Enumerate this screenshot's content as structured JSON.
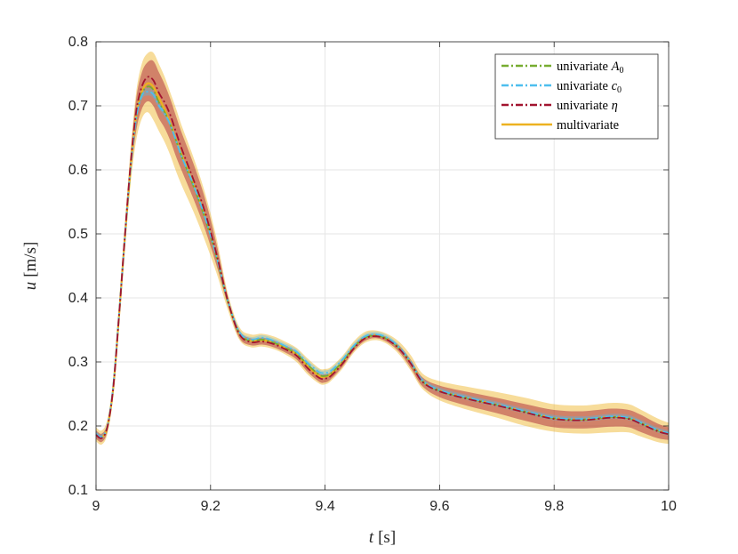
{
  "chart_data": {
    "type": "line",
    "xlabel": {
      "var": "t",
      "unit": "[s]"
    },
    "ylabel": {
      "var": "u",
      "unit": "[m/s]"
    },
    "xlim": [
      9,
      10
    ],
    "ylim": [
      0.1,
      0.8
    ],
    "xticks": [
      9,
      9.2,
      9.4,
      9.6,
      9.8,
      10
    ],
    "yticks": [
      0.1,
      0.2,
      0.3,
      0.4,
      0.5,
      0.6,
      0.7,
      0.8
    ],
    "xtick_labels": [
      "9",
      "9.2",
      "9.4",
      "9.6",
      "9.8",
      "10"
    ],
    "ytick_labels": [
      "0.1",
      "0.2",
      "0.3",
      "0.4",
      "0.5",
      "0.6",
      "0.7",
      "0.8"
    ],
    "grid": true,
    "legend_position": "top-right",
    "x": [
      9.0,
      9.01,
      9.02,
      9.03,
      9.04,
      9.05,
      9.06,
      9.07,
      9.08,
      9.09,
      9.1,
      9.11,
      9.12,
      9.13,
      9.14,
      9.15,
      9.17,
      9.19,
      9.21,
      9.23,
      9.25,
      9.27,
      9.29,
      9.31,
      9.33,
      9.35,
      9.37,
      9.39,
      9.4,
      9.41,
      9.43,
      9.45,
      9.47,
      9.49,
      9.51,
      9.53,
      9.55,
      9.57,
      9.6,
      9.65,
      9.7,
      9.75,
      9.8,
      9.85,
      9.9,
      9.93,
      9.95,
      9.98,
      10.0
    ],
    "series": [
      {
        "name": "univariate A0",
        "legend_main": "univariate ",
        "legend_sym": "A",
        "legend_sub": "0",
        "color": "#77AC30",
        "dash": "dashdot",
        "values": [
          0.187,
          0.182,
          0.2,
          0.26,
          0.37,
          0.49,
          0.6,
          0.68,
          0.718,
          0.73,
          0.725,
          0.705,
          0.69,
          0.67,
          0.645,
          0.62,
          0.575,
          0.525,
          0.465,
          0.395,
          0.345,
          0.333,
          0.335,
          0.33,
          0.322,
          0.313,
          0.295,
          0.28,
          0.278,
          0.282,
          0.3,
          0.323,
          0.338,
          0.341,
          0.335,
          0.321,
          0.298,
          0.27,
          0.255,
          0.243,
          0.233,
          0.222,
          0.212,
          0.21,
          0.214,
          0.212,
          0.205,
          0.193,
          0.188
        ]
      },
      {
        "name": "univariate c0",
        "legend_main": "univariate ",
        "legend_sym": "c",
        "legend_sub": "0",
        "color": "#4DBEEE",
        "dash": "dashdot",
        "values": [
          0.188,
          0.183,
          0.2,
          0.262,
          0.372,
          0.49,
          0.6,
          0.68,
          0.716,
          0.722,
          0.718,
          0.7,
          0.688,
          0.67,
          0.645,
          0.62,
          0.577,
          0.527,
          0.466,
          0.396,
          0.347,
          0.335,
          0.338,
          0.333,
          0.325,
          0.316,
          0.298,
          0.284,
          0.283,
          0.286,
          0.303,
          0.325,
          0.34,
          0.343,
          0.337,
          0.322,
          0.299,
          0.271,
          0.256,
          0.244,
          0.234,
          0.223,
          0.213,
          0.211,
          0.215,
          0.213,
          0.206,
          0.194,
          0.189
        ]
      },
      {
        "name": "univariate η",
        "legend_main": "univariate ",
        "legend_sym": "η",
        "legend_sub": "",
        "color": "#A2142F",
        "dash": "dashdot",
        "values": [
          0.186,
          0.181,
          0.199,
          0.259,
          0.37,
          0.492,
          0.605,
          0.69,
          0.73,
          0.745,
          0.74,
          0.72,
          0.705,
          0.685,
          0.658,
          0.632,
          0.585,
          0.535,
          0.47,
          0.396,
          0.344,
          0.331,
          0.332,
          0.328,
          0.32,
          0.31,
          0.29,
          0.275,
          0.274,
          0.278,
          0.297,
          0.321,
          0.337,
          0.34,
          0.334,
          0.32,
          0.297,
          0.269,
          0.254,
          0.242,
          0.232,
          0.221,
          0.211,
          0.209,
          0.213,
          0.211,
          0.204,
          0.192,
          0.187
        ]
      },
      {
        "name": "multivariate",
        "legend_main": "multivariate",
        "legend_sym": "",
        "legend_sub": "",
        "color": "#EDB120",
        "dash": "solid",
        "values": [
          0.187,
          0.182,
          0.199,
          0.259,
          0.37,
          0.49,
          0.6,
          0.685,
          0.722,
          0.735,
          0.73,
          0.712,
          0.694,
          0.672,
          0.646,
          0.622,
          0.578,
          0.528,
          0.467,
          0.395,
          0.345,
          0.333,
          0.334,
          0.33,
          0.322,
          0.312,
          0.293,
          0.278,
          0.277,
          0.281,
          0.299,
          0.323,
          0.338,
          0.341,
          0.335,
          0.321,
          0.298,
          0.27,
          0.255,
          0.243,
          0.233,
          0.222,
          0.212,
          0.21,
          0.214,
          0.212,
          0.205,
          0.193,
          0.188
        ]
      }
    ],
    "bands": [
      {
        "name": "multivariate band",
        "color": "#EDB120",
        "opacity": 0.45,
        "lower": [
          0.176,
          0.171,
          0.188,
          0.247,
          0.355,
          0.47,
          0.575,
          0.645,
          0.68,
          0.69,
          0.678,
          0.66,
          0.643,
          0.622,
          0.597,
          0.575,
          0.535,
          0.49,
          0.44,
          0.382,
          0.335,
          0.323,
          0.324,
          0.32,
          0.312,
          0.3,
          0.28,
          0.266,
          0.265,
          0.27,
          0.289,
          0.314,
          0.33,
          0.334,
          0.327,
          0.311,
          0.286,
          0.258,
          0.24,
          0.225,
          0.213,
          0.2,
          0.191,
          0.188,
          0.19,
          0.19,
          0.184,
          0.175,
          0.172
        ],
        "upper": [
          0.198,
          0.193,
          0.211,
          0.272,
          0.386,
          0.51,
          0.628,
          0.72,
          0.766,
          0.782,
          0.783,
          0.765,
          0.745,
          0.72,
          0.695,
          0.668,
          0.62,
          0.565,
          0.495,
          0.408,
          0.355,
          0.343,
          0.344,
          0.34,
          0.332,
          0.322,
          0.305,
          0.29,
          0.289,
          0.292,
          0.309,
          0.332,
          0.347,
          0.349,
          0.343,
          0.331,
          0.31,
          0.282,
          0.27,
          0.261,
          0.253,
          0.244,
          0.234,
          0.232,
          0.236,
          0.234,
          0.226,
          0.212,
          0.205
        ]
      },
      {
        "name": "univariate η band",
        "color": "#A2142F",
        "opacity": 0.45,
        "lower": [
          0.18,
          0.175,
          0.192,
          0.251,
          0.36,
          0.478,
          0.585,
          0.66,
          0.695,
          0.707,
          0.7,
          0.68,
          0.665,
          0.645,
          0.62,
          0.598,
          0.555,
          0.508,
          0.452,
          0.389,
          0.338,
          0.326,
          0.327,
          0.323,
          0.315,
          0.304,
          0.284,
          0.269,
          0.268,
          0.273,
          0.292,
          0.317,
          0.333,
          0.337,
          0.33,
          0.315,
          0.29,
          0.262,
          0.245,
          0.231,
          0.22,
          0.208,
          0.198,
          0.196,
          0.199,
          0.198,
          0.191,
          0.181,
          0.178
        ],
        "upper": [
          0.193,
          0.188,
          0.205,
          0.266,
          0.38,
          0.505,
          0.62,
          0.71,
          0.752,
          0.768,
          0.77,
          0.752,
          0.733,
          0.71,
          0.683,
          0.657,
          0.61,
          0.556,
          0.486,
          0.403,
          0.35,
          0.337,
          0.338,
          0.334,
          0.326,
          0.316,
          0.297,
          0.282,
          0.281,
          0.284,
          0.302,
          0.326,
          0.341,
          0.344,
          0.338,
          0.325,
          0.303,
          0.276,
          0.263,
          0.253,
          0.244,
          0.234,
          0.225,
          0.223,
          0.227,
          0.225,
          0.218,
          0.204,
          0.198
        ]
      },
      {
        "name": "univariate c0 band",
        "color": "#4DBEEE",
        "opacity": 0.35,
        "lower": [
          0.184,
          0.179,
          0.196,
          0.258,
          0.368,
          0.486,
          0.596,
          0.675,
          0.71,
          0.716,
          0.712,
          0.695,
          0.683,
          0.665,
          0.64,
          0.615,
          0.572,
          0.522,
          0.462,
          0.392,
          0.343,
          0.331,
          0.334,
          0.329,
          0.321,
          0.312,
          0.294,
          0.28,
          0.279,
          0.282,
          0.299,
          0.321,
          0.336,
          0.339,
          0.333,
          0.318,
          0.295,
          0.267,
          0.252,
          0.24,
          0.23,
          0.219,
          0.209,
          0.207,
          0.211,
          0.209,
          0.202,
          0.19,
          0.185
        ],
        "upper": [
          0.192,
          0.187,
          0.204,
          0.266,
          0.376,
          0.494,
          0.604,
          0.685,
          0.722,
          0.728,
          0.724,
          0.705,
          0.693,
          0.675,
          0.65,
          0.625,
          0.582,
          0.532,
          0.47,
          0.4,
          0.351,
          0.339,
          0.342,
          0.337,
          0.329,
          0.32,
          0.302,
          0.288,
          0.287,
          0.29,
          0.307,
          0.329,
          0.344,
          0.347,
          0.341,
          0.326,
          0.303,
          0.275,
          0.26,
          0.248,
          0.238,
          0.227,
          0.217,
          0.215,
          0.219,
          0.217,
          0.21,
          0.198,
          0.193
        ]
      }
    ]
  }
}
